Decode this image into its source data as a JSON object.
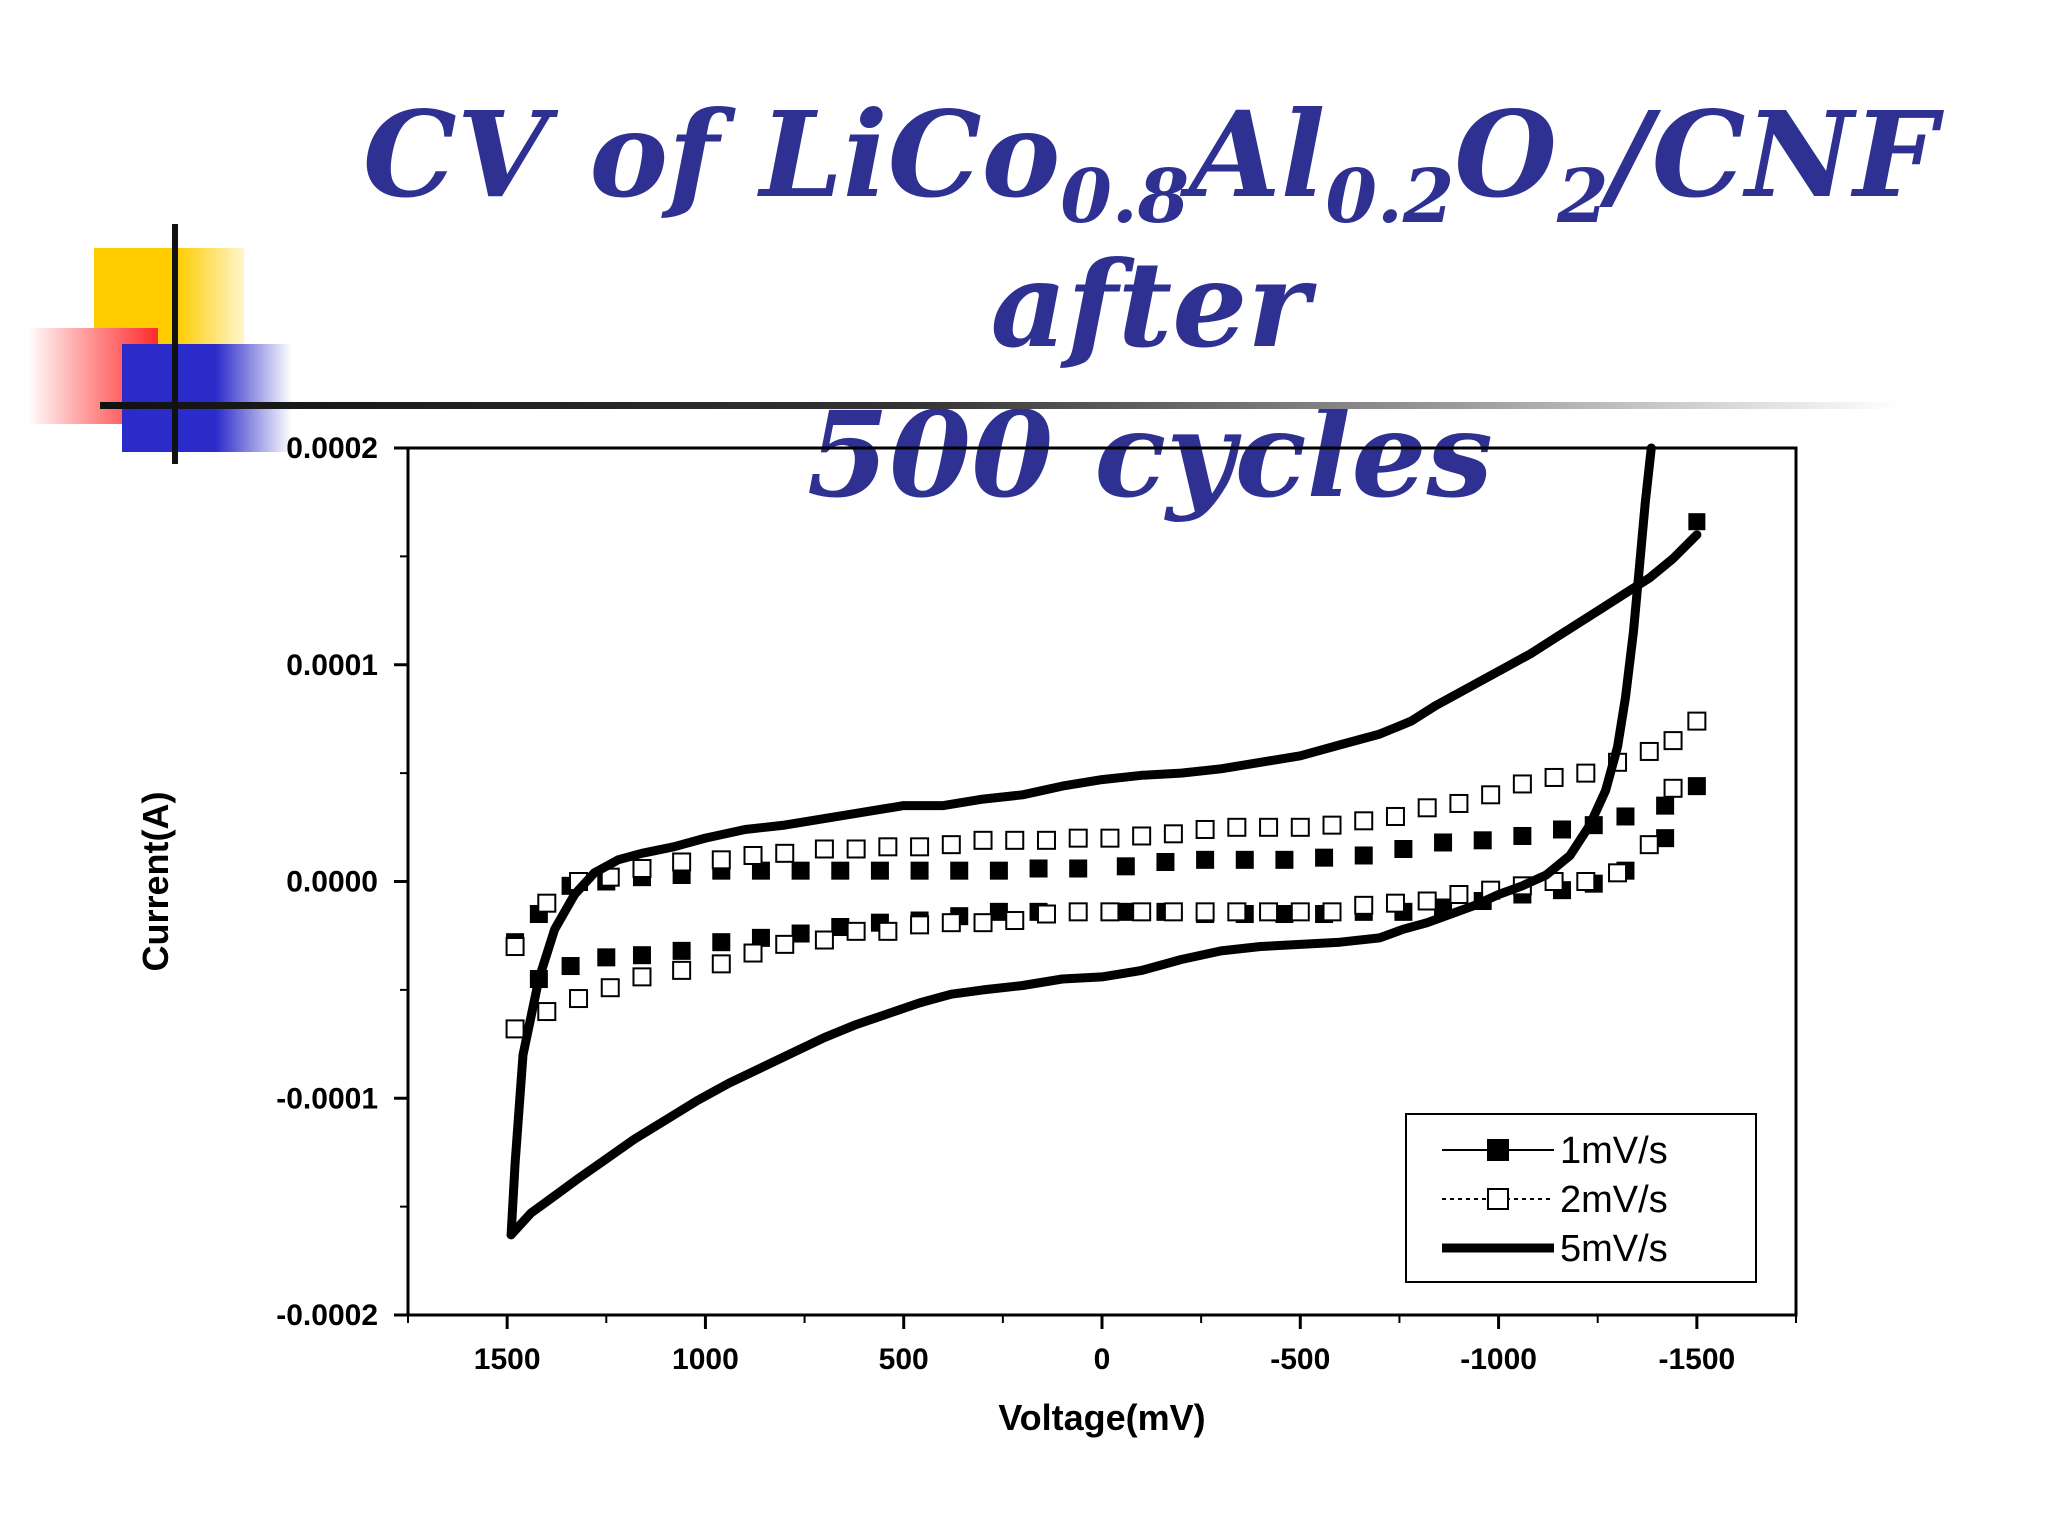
{
  "slide": {
    "title_part1": "CV of LiCo",
    "sub1": "0.8",
    "title_part2": "Al",
    "sub2": "0.2",
    "title_part3": "O",
    "sub3": "2",
    "title_part4": "/CNF after",
    "title_line2": "500 cycles",
    "title_color": "#2e3192"
  },
  "chart_data": {
    "type": "line",
    "title": "CV of LiCo0.8Al0.2O2/CNF after 500 cycles",
    "xlabel": "Voltage(mV)",
    "ylabel": "Current(A)",
    "xlim": [
      1750,
      -1750
    ],
    "ylim": [
      -0.0002,
      0.0002
    ],
    "x_reversed": true,
    "x_ticks": [
      1500,
      1000,
      500,
      0,
      -500,
      -1000,
      -1500
    ],
    "x_tick_labels": [
      "1500",
      "1000",
      "500",
      "0",
      "-500",
      "-1000",
      "-1500"
    ],
    "y_ticks": [
      0.0002,
      0.0001,
      0.0,
      -0.0001,
      -0.0002
    ],
    "y_tick_labels": [
      "0.0002",
      "0.0001",
      "0.0000",
      "-0.0001",
      "-0.0002"
    ],
    "legend_position": "bottom-right",
    "series": [
      {
        "name": "1mV/s",
        "style": "line-filled-square",
        "upper": {
          "x": [
            1480,
            1420,
            1340,
            1250,
            1160,
            1060,
            960,
            860,
            760,
            660,
            560,
            460,
            360,
            260,
            160,
            60,
            -60,
            -160,
            -260,
            -360,
            -460,
            -560,
            -660,
            -760,
            -860,
            -960,
            -1060,
            -1160,
            -1240,
            -1320,
            -1420,
            -1500
          ],
          "y": [
            -2.8e-05,
            -1.5e-05,
            -2e-06,
            0.0,
            2e-06,
            3e-06,
            5e-06,
            5e-06,
            5e-06,
            5e-06,
            5e-06,
            5e-06,
            5e-06,
            5e-06,
            6e-06,
            6e-06,
            7e-06,
            9e-06,
            1e-05,
            1e-05,
            1e-05,
            1.1e-05,
            1.2e-05,
            1.5e-05,
            1.8e-05,
            1.9e-05,
            2.1e-05,
            2.4e-05,
            2.6e-05,
            3e-05,
            3.5e-05,
            4.4e-05
          ]
        },
        "lower": {
          "x": [
            1420,
            1340,
            1250,
            1160,
            1060,
            960,
            860,
            760,
            660,
            560,
            460,
            360,
            260,
            160,
            60,
            -60,
            -160,
            -260,
            -360,
            -460,
            -560,
            -660,
            -760,
            -860,
            -960,
            -1060,
            -1160,
            -1240,
            -1320,
            -1420
          ],
          "y": [
            -4.5e-05,
            -3.9e-05,
            -3.5e-05,
            -3.4e-05,
            -3.2e-05,
            -2.8e-05,
            -2.6e-05,
            -2.4e-05,
            -2.1e-05,
            -1.9e-05,
            -1.8e-05,
            -1.6e-05,
            -1.4e-05,
            -1.4e-05,
            -1.4e-05,
            -1.4e-05,
            -1.4e-05,
            -1.5e-05,
            -1.5e-05,
            -1.5e-05,
            -1.5e-05,
            -1.4e-05,
            -1.4e-05,
            -1.2e-05,
            -9e-06,
            -6e-06,
            -4e-06,
            -1e-06,
            5e-06,
            2e-05
          ]
        },
        "end_point": {
          "x": -1500,
          "y": 0.000166
        }
      },
      {
        "name": "2mV/s",
        "style": "dotted-open-square",
        "upper": {
          "x": [
            1480,
            1400,
            1320,
            1240,
            1160,
            1060,
            960,
            880,
            800,
            700,
            620,
            540,
            460,
            380,
            300,
            220,
            140,
            60,
            -20,
            -100,
            -180,
            -260,
            -340,
            -420,
            -500,
            -580,
            -660,
            -740,
            -820,
            -900,
            -980,
            -1060,
            -1140,
            -1220,
            -1300,
            -1380,
            -1440,
            -1500
          ],
          "y": [
            -3e-05,
            -1e-05,
            0.0,
            2e-06,
            6e-06,
            9e-06,
            1e-05,
            1.2e-05,
            1.3e-05,
            1.5e-05,
            1.5e-05,
            1.6e-05,
            1.6e-05,
            1.7e-05,
            1.9e-05,
            1.9e-05,
            1.9e-05,
            2e-05,
            2e-05,
            2.1e-05,
            2.2e-05,
            2.4e-05,
            2.5e-05,
            2.5e-05,
            2.5e-05,
            2.6e-05,
            2.8e-05,
            3e-05,
            3.4e-05,
            3.6e-05,
            4e-05,
            4.5e-05,
            4.8e-05,
            5e-05,
            5.5e-05,
            6e-05,
            6.5e-05,
            7.4e-05
          ]
        },
        "lower": {
          "x": [
            1480,
            1400,
            1320,
            1240,
            1160,
            1060,
            960,
            880,
            800,
            700,
            620,
            540,
            460,
            380,
            300,
            220,
            140,
            60,
            -20,
            -100,
            -180,
            -260,
            -340,
            -420,
            -500,
            -580,
            -660,
            -740,
            -820,
            -900,
            -980,
            -1060,
            -1140,
            -1220,
            -1300,
            -1380,
            -1440
          ],
          "y": [
            -6.8e-05,
            -6e-05,
            -5.4e-05,
            -4.9e-05,
            -4.4e-05,
            -4.1e-05,
            -3.8e-05,
            -3.3e-05,
            -2.9e-05,
            -2.7e-05,
            -2.3e-05,
            -2.3e-05,
            -2e-05,
            -1.9e-05,
            -1.9e-05,
            -1.8e-05,
            -1.5e-05,
            -1.4e-05,
            -1.4e-05,
            -1.4e-05,
            -1.4e-05,
            -1.4e-05,
            -1.4e-05,
            -1.4e-05,
            -1.4e-05,
            -1.4e-05,
            -1.1e-05,
            -1e-05,
            -9e-06,
            -6e-06,
            -4e-06,
            -2e-06,
            0.0,
            0.0,
            4e-06,
            1.7e-05,
            4.3e-05
          ]
        }
      },
      {
        "name": "5mV/s",
        "style": "thick-line",
        "upper": {
          "x": [
            1490,
            1480,
            1460,
            1420,
            1380,
            1330,
            1280,
            1220,
            1160,
            1080,
            1000,
            900,
            800,
            700,
            600,
            500,
            400,
            300,
            200,
            100,
            0,
            -100,
            -200,
            -300,
            -400,
            -500,
            -600,
            -700,
            -780,
            -840,
            -900,
            -960,
            -1020,
            -1080,
            -1140,
            -1200,
            -1260,
            -1320,
            -1380,
            -1440,
            -1500
          ],
          "y": [
            -0.000163,
            -0.00013,
            -8e-05,
            -4.5e-05,
            -2.2e-05,
            -6e-06,
            4e-06,
            1e-05,
            1.3e-05,
            1.6e-05,
            2e-05,
            2.4e-05,
            2.6e-05,
            2.9e-05,
            3.2e-05,
            3.5e-05,
            3.5e-05,
            3.8e-05,
            4e-05,
            4.4e-05,
            4.7e-05,
            4.9e-05,
            5e-05,
            5.2e-05,
            5.5e-05,
            5.8e-05,
            6.3e-05,
            6.8e-05,
            7.4e-05,
            8.1e-05,
            8.7e-05,
            9.3e-05,
            9.9e-05,
            0.000105,
            0.000112,
            0.000119,
            0.000126,
            0.000133,
            0.00014,
            0.000149,
            0.00016
          ]
        },
        "lower": {
          "x": [
            1490,
            1440,
            1380,
            1320,
            1250,
            1180,
            1100,
            1020,
            940,
            860,
            780,
            700,
            620,
            540,
            460,
            380,
            300,
            200,
            100,
            0,
            -100,
            -200,
            -300,
            -400,
            -500,
            -600,
            -700,
            -760,
            -820,
            -880,
            -940,
            -1000,
            -1060,
            -1120,
            -1180,
            -1230,
            -1270,
            -1300,
            -1320,
            -1340,
            -1355,
            -1370,
            -1385
          ],
          "y": [
            -0.000163,
            -0.000153,
            -0.000145,
            -0.000137,
            -0.000128,
            -0.000119,
            -0.00011,
            -0.000101,
            -9.3e-05,
            -8.6e-05,
            -7.9e-05,
            -7.2e-05,
            -6.6e-05,
            -6.1e-05,
            -5.6e-05,
            -5.2e-05,
            -5e-05,
            -4.8e-05,
            -4.5e-05,
            -4.4e-05,
            -4.1e-05,
            -3.6e-05,
            -3.2e-05,
            -3e-05,
            -2.9e-05,
            -2.8e-05,
            -2.6e-05,
            -2.2e-05,
            -1.9e-05,
            -1.5e-05,
            -1.1e-05,
            -6e-06,
            -2e-06,
            3e-06,
            1.2e-05,
            2.6e-05,
            4.2e-05,
            6.2e-05,
            8.5e-05,
            0.000115,
            0.000145,
            0.000175,
            0.0002
          ]
        }
      }
    ]
  }
}
